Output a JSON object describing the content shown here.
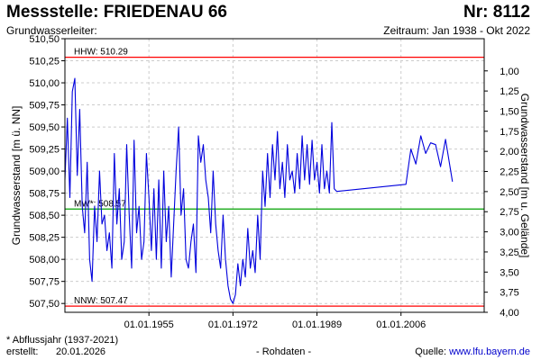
{
  "header": {
    "station_prefix": "Messstelle:",
    "station_name": "FRIEDENAU 66",
    "number_prefix": "Nr:",
    "number": "8112",
    "aquifer_label": "Grundwasserleiter:",
    "period_label": "Zeitraum: Jan 1938 - Okt 2022"
  },
  "footer": {
    "footnote": "* Abflussjahr (1937-2021)",
    "created_label": "erstellt:",
    "created_date": "20.01.2026",
    "data_type": "- Rohdaten -",
    "source_label": "Quelle:",
    "source_link": "www.lfu.bayern.de"
  },
  "chart_data": {
    "type": "line",
    "ylabel": "Grundwasserstand [m ü. NN]",
    "y2label": "Grundwasserstand [m u. Gelände]",
    "ylim": [
      507.4,
      510.5
    ],
    "y2lim": [
      0.6,
      4.0
    ],
    "xlim": [
      "1938-01-01",
      "2022-10-31"
    ],
    "grid": true,
    "y_ticks": [
      "510,50",
      "510,25",
      "510,00",
      "509,75",
      "509,50",
      "509,25",
      "509,00",
      "508,75",
      "508,50",
      "508,25",
      "508,00",
      "507,75",
      "507,50"
    ],
    "y_tick_values": [
      510.5,
      510.25,
      510.0,
      509.75,
      509.5,
      509.25,
      509.0,
      508.75,
      508.5,
      508.25,
      508.0,
      507.75,
      507.5
    ],
    "y2_ticks": [
      "1,00",
      "1,25",
      "1,50",
      "1,75",
      "2,00",
      "2,25",
      "2,50",
      "2,75",
      "3,00",
      "3,25",
      "3,50",
      "3,75",
      "4,00"
    ],
    "y2_tick_values": [
      1.0,
      1.25,
      1.5,
      1.75,
      2.0,
      2.25,
      2.5,
      2.75,
      3.0,
      3.25,
      3.5,
      3.75,
      4.0
    ],
    "x_ticks": [
      "01.01.1955",
      "01.01.1972",
      "01.01.1989",
      "01.01.2006"
    ],
    "x_tick_dates": [
      "1955-01-01",
      "1972-01-01",
      "1989-01-01",
      "2006-01-01"
    ],
    "reference_lines": [
      {
        "label": "HHW: 510.29",
        "value": 510.29,
        "color": "#ff0000"
      },
      {
        "label": "MW*: 508.57",
        "value": 508.57,
        "color": "#00a000"
      },
      {
        "label": "NNW: 507.47",
        "value": 507.47,
        "color": "#ff0000"
      }
    ],
    "series": [
      {
        "color": "#0000dd",
        "points": [
          [
            "1938-01",
            508.9
          ],
          [
            "1938-07",
            509.6
          ],
          [
            "1939-01",
            508.7
          ],
          [
            "1939-07",
            509.9
          ],
          [
            "1940-01",
            510.05
          ],
          [
            "1940-07",
            508.95
          ],
          [
            "1941-01",
            509.7
          ],
          [
            "1941-07",
            508.6
          ],
          [
            "1942-01",
            508.3
          ],
          [
            "1942-07",
            509.1
          ],
          [
            "1943-01",
            508.0
          ],
          [
            "1943-07",
            507.75
          ],
          [
            "1944-01",
            508.6
          ],
          [
            "1944-07",
            508.2
          ],
          [
            "1945-01",
            509.0
          ],
          [
            "1945-07",
            508.4
          ],
          [
            "1946-01",
            508.5
          ],
          [
            "1946-07",
            508.1
          ],
          [
            "1947-01",
            508.3
          ],
          [
            "1947-07",
            507.9
          ],
          [
            "1948-01",
            509.2
          ],
          [
            "1948-07",
            508.4
          ],
          [
            "1949-01",
            508.8
          ],
          [
            "1949-07",
            508.0
          ],
          [
            "1950-01",
            508.2
          ],
          [
            "1950-07",
            509.3
          ],
          [
            "1951-01",
            508.5
          ],
          [
            "1951-07",
            507.9
          ],
          [
            "1952-01",
            509.35
          ],
          [
            "1952-07",
            508.3
          ],
          [
            "1953-01",
            508.6
          ],
          [
            "1953-07",
            508.0
          ],
          [
            "1954-01",
            508.2
          ],
          [
            "1954-07",
            509.2
          ],
          [
            "1955-01",
            508.7
          ],
          [
            "1955-07",
            508.1
          ],
          [
            "1956-01",
            508.8
          ],
          [
            "1956-07",
            508.0
          ],
          [
            "1957-01",
            508.9
          ],
          [
            "1957-07",
            507.9
          ],
          [
            "1958-01",
            509.0
          ],
          [
            "1958-07",
            508.2
          ],
          [
            "1959-01",
            508.6
          ],
          [
            "1959-07",
            507.8
          ],
          [
            "1960-01",
            508.4
          ],
          [
            "1960-07",
            509.0
          ],
          [
            "1961-01",
            509.5
          ],
          [
            "1961-07",
            508.5
          ],
          [
            "1962-01",
            508.8
          ],
          [
            "1962-07",
            508.0
          ],
          [
            "1963-01",
            507.9
          ],
          [
            "1963-07",
            508.2
          ],
          [
            "1964-01",
            508.4
          ],
          [
            "1964-07",
            507.85
          ],
          [
            "1965-01",
            509.4
          ],
          [
            "1965-07",
            509.1
          ],
          [
            "1966-01",
            509.3
          ],
          [
            "1966-07",
            508.9
          ],
          [
            "1967-01",
            508.7
          ],
          [
            "1967-07",
            508.3
          ],
          [
            "1968-01",
            509.0
          ],
          [
            "1968-07",
            508.4
          ],
          [
            "1969-01",
            508.1
          ],
          [
            "1969-07",
            507.9
          ],
          [
            "1970-01",
            508.5
          ],
          [
            "1970-07",
            508.0
          ],
          [
            "1971-01",
            507.7
          ],
          [
            "1971-07",
            507.55
          ],
          [
            "1972-01",
            507.5
          ],
          [
            "1972-07",
            507.6
          ],
          [
            "1973-01",
            507.95
          ],
          [
            "1973-07",
            507.7
          ],
          [
            "1974-01",
            508.0
          ],
          [
            "1974-07",
            507.8
          ],
          [
            "1975-01",
            508.35
          ],
          [
            "1975-07",
            507.9
          ],
          [
            "1976-01",
            508.1
          ],
          [
            "1976-07",
            507.85
          ],
          [
            "1977-01",
            508.5
          ],
          [
            "1977-07",
            508.0
          ],
          [
            "1978-01",
            509.0
          ],
          [
            "1978-07",
            508.6
          ],
          [
            "1979-01",
            509.2
          ],
          [
            "1979-07",
            508.7
          ],
          [
            "1980-01",
            509.3
          ],
          [
            "1980-07",
            508.9
          ],
          [
            "1981-01",
            509.45
          ],
          [
            "1981-07",
            508.8
          ],
          [
            "1982-01",
            509.1
          ],
          [
            "1982-07",
            508.7
          ],
          [
            "1983-01",
            509.3
          ],
          [
            "1983-07",
            508.9
          ],
          [
            "1984-01",
            509.0
          ],
          [
            "1984-07",
            508.75
          ],
          [
            "1985-01",
            509.2
          ],
          [
            "1985-07",
            508.8
          ],
          [
            "1986-01",
            509.4
          ],
          [
            "1986-07",
            508.9
          ],
          [
            "1987-01",
            509.3
          ],
          [
            "1987-07",
            508.85
          ],
          [
            "1988-01",
            509.35
          ],
          [
            "1988-07",
            508.9
          ],
          [
            "1989-01",
            509.1
          ],
          [
            "1989-07",
            508.75
          ],
          [
            "1990-01",
            509.3
          ],
          [
            "1990-07",
            508.8
          ],
          [
            "1991-01",
            509.0
          ],
          [
            "1991-07",
            508.75
          ],
          [
            "1992-01",
            509.55
          ],
          [
            "1992-07",
            508.8
          ],
          [
            "1993-01",
            508.77
          ],
          [
            "2007-01",
            508.85
          ],
          [
            "2008-01",
            509.25
          ],
          [
            "2009-01",
            509.08
          ],
          [
            "2010-01",
            509.4
          ],
          [
            "2011-01",
            509.2
          ],
          [
            "2012-01",
            509.32
          ],
          [
            "2013-01",
            509.3
          ],
          [
            "2014-01",
            509.05
          ],
          [
            "2015-01",
            509.36
          ],
          [
            "2016-06",
            508.88
          ]
        ]
      }
    ]
  }
}
